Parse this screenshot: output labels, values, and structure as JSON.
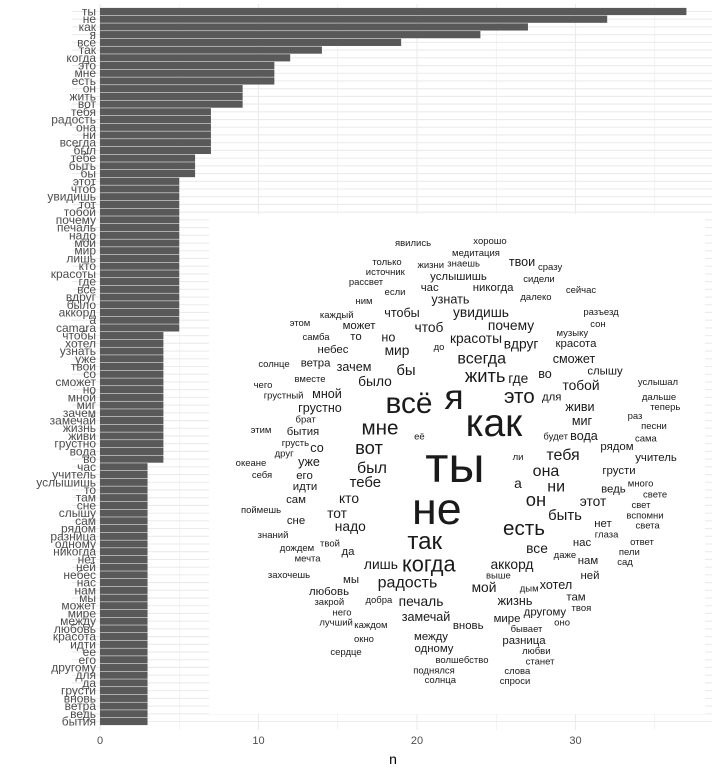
{
  "chart_data": {
    "type": "bar",
    "orientation": "horizontal",
    "categories": [
      "ты",
      "не",
      "как",
      "я",
      "всё",
      "так",
      "когда",
      "это",
      "мне",
      "есть",
      "он",
      "жить",
      "вот",
      "тебя",
      "радость",
      "она",
      "ни",
      "всегда",
      "был",
      "тебе",
      "быть",
      "бы",
      "этот",
      "чтоб",
      "увидишь",
      "тот",
      "тобой",
      "почему",
      "печаль",
      "надо",
      "мой",
      "мир",
      "лишь",
      "кто",
      "красоты",
      "где",
      "все",
      "вдруг",
      "было",
      "аккорд",
      "а",
      "camara",
      "чтобы",
      "хотел",
      "узнать",
      "уже",
      "твои",
      "со",
      "сможет",
      "но",
      "мной",
      "миг",
      "зачем",
      "замечай",
      "жизнь",
      "живи",
      "грустно",
      "вода",
      "во",
      "час",
      "учитель",
      "услышишь",
      "то",
      "там",
      "сне",
      "слышу",
      "сам",
      "рядом",
      "разница",
      "одному",
      "никогда",
      "нет",
      "ней",
      "небес",
      "нас",
      "нам",
      "мы",
      "может",
      "мире",
      "между",
      "любовь",
      "красота",
      "идти",
      "ее",
      "его",
      "другому",
      "для",
      "да",
      "грусти",
      "вновь",
      "ветра",
      "ведь",
      "бытия"
    ],
    "values": [
      37,
      32,
      27,
      24,
      19,
      14,
      12,
      11,
      11,
      11,
      9,
      9,
      9,
      7,
      7,
      7,
      7,
      7,
      7,
      6,
      6,
      6,
      5,
      5,
      5,
      5,
      5,
      5,
      5,
      5,
      5,
      5,
      5,
      5,
      5,
      5,
      5,
      5,
      5,
      5,
      5,
      5,
      4,
      4,
      4,
      4,
      4,
      4,
      4,
      4,
      4,
      4,
      4,
      4,
      4,
      4,
      4,
      4,
      4,
      3,
      3,
      3,
      3,
      3,
      3,
      3,
      3,
      3,
      3,
      3,
      3,
      3,
      3,
      3,
      3,
      3,
      3,
      3,
      3,
      3,
      3,
      3,
      3,
      3,
      3,
      3,
      3,
      3,
      3,
      3,
      3,
      3,
      3
    ],
    "xlabel": "n",
    "ylabel": "",
    "xlim": [
      0,
      37
    ],
    "xticks": [
      "0",
      "10",
      "20",
      "30"
    ],
    "grid": true,
    "bar_color": "#595959",
    "word_cloud": {
      "color": "#1a1a1a",
      "words": [
        {
          "text": "ты",
          "n": 37
        },
        {
          "text": "не",
          "n": 32
        },
        {
          "text": "как",
          "n": 27
        },
        {
          "text": "я",
          "n": 24
        },
        {
          "text": "всё",
          "n": 19
        },
        {
          "text": "так",
          "n": 14
        },
        {
          "text": "когда",
          "n": 12
        },
        {
          "text": "это",
          "n": 11
        },
        {
          "text": "мне",
          "n": 11
        },
        {
          "text": "есть",
          "n": 11
        },
        {
          "text": "он",
          "n": 9
        },
        {
          "text": "жить",
          "n": 9
        },
        {
          "text": "вот",
          "n": 9
        },
        {
          "text": "тебя",
          "n": 7
        },
        {
          "text": "радость",
          "n": 7
        },
        {
          "text": "она",
          "n": 7
        },
        {
          "text": "ни",
          "n": 7
        },
        {
          "text": "всегда",
          "n": 7
        },
        {
          "text": "был",
          "n": 7
        },
        {
          "text": "тебе",
          "n": 6
        },
        {
          "text": "быть",
          "n": 6
        },
        {
          "text": "бы",
          "n": 6
        },
        {
          "text": "этот",
          "n": 5
        },
        {
          "text": "чтоб",
          "n": 5
        },
        {
          "text": "увидишь",
          "n": 5
        },
        {
          "text": "тот",
          "n": 5
        },
        {
          "text": "тобой",
          "n": 5
        },
        {
          "text": "почему",
          "n": 5
        },
        {
          "text": "печаль",
          "n": 5
        },
        {
          "text": "надо",
          "n": 5
        },
        {
          "text": "мой",
          "n": 5
        },
        {
          "text": "мир",
          "n": 5
        },
        {
          "text": "лишь",
          "n": 5
        },
        {
          "text": "кто",
          "n": 5
        },
        {
          "text": "красоты",
          "n": 5
        },
        {
          "text": "где",
          "n": 5
        },
        {
          "text": "все",
          "n": 5
        },
        {
          "text": "вдруг",
          "n": 5
        },
        {
          "text": "было",
          "n": 5
        },
        {
          "text": "аккорд",
          "n": 5
        },
        {
          "text": "а",
          "n": 5
        },
        {
          "text": "чтобы",
          "n": 4
        },
        {
          "text": "хотел",
          "n": 4
        },
        {
          "text": "узнать",
          "n": 4
        },
        {
          "text": "уже",
          "n": 4
        },
        {
          "text": "твои",
          "n": 4
        },
        {
          "text": "со",
          "n": 4
        },
        {
          "text": "сможет",
          "n": 4
        },
        {
          "text": "но",
          "n": 4
        },
        {
          "text": "мной",
          "n": 4
        },
        {
          "text": "миг",
          "n": 4
        },
        {
          "text": "зачем",
          "n": 4
        },
        {
          "text": "замечай",
          "n": 4
        },
        {
          "text": "жизнь",
          "n": 4
        },
        {
          "text": "живи",
          "n": 4
        },
        {
          "text": "грустно",
          "n": 4
        },
        {
          "text": "вода",
          "n": 4
        },
        {
          "text": "во",
          "n": 4
        },
        {
          "text": "час",
          "n": 3
        },
        {
          "text": "учитель",
          "n": 3
        },
        {
          "text": "услышишь",
          "n": 3
        },
        {
          "text": "то",
          "n": 3
        },
        {
          "text": "там",
          "n": 3
        },
        {
          "text": "сне",
          "n": 3
        },
        {
          "text": "слышу",
          "n": 3
        },
        {
          "text": "сам",
          "n": 3
        },
        {
          "text": "рядом",
          "n": 3
        },
        {
          "text": "разница",
          "n": 3
        },
        {
          "text": "одному",
          "n": 3
        },
        {
          "text": "никогда",
          "n": 3
        },
        {
          "text": "нет",
          "n": 3
        },
        {
          "text": "ней",
          "n": 3
        },
        {
          "text": "небес",
          "n": 3
        },
        {
          "text": "нас",
          "n": 3
        },
        {
          "text": "нам",
          "n": 3
        },
        {
          "text": "мы",
          "n": 3
        },
        {
          "text": "может",
          "n": 3
        },
        {
          "text": "мире",
          "n": 3
        },
        {
          "text": "между",
          "n": 3
        },
        {
          "text": "любовь",
          "n": 3
        },
        {
          "text": "красота",
          "n": 3
        },
        {
          "text": "идти",
          "n": 3
        },
        {
          "text": "его",
          "n": 3
        },
        {
          "text": "другому",
          "n": 3
        },
        {
          "text": "для",
          "n": 3
        },
        {
          "text": "да",
          "n": 3
        },
        {
          "text": "грусти",
          "n": 3
        },
        {
          "text": "вновь",
          "n": 3
        },
        {
          "text": "ветра",
          "n": 3
        },
        {
          "text": "ведь",
          "n": 3
        },
        {
          "text": "бытия",
          "n": 3
        },
        {
          "text": "явились"
        },
        {
          "text": "хорошо"
        },
        {
          "text": "медитация"
        },
        {
          "text": "только"
        },
        {
          "text": "знаешь"
        },
        {
          "text": "источник"
        },
        {
          "text": "жизни"
        },
        {
          "text": "сразу"
        },
        {
          "text": "сидели"
        },
        {
          "text": "рассвет"
        },
        {
          "text": "если"
        },
        {
          "text": "далеко"
        },
        {
          "text": "сейчас"
        },
        {
          "text": "ним"
        },
        {
          "text": "разъезд"
        },
        {
          "text": "каждый"
        },
        {
          "text": "этом"
        },
        {
          "text": "сон"
        },
        {
          "text": "музыку"
        },
        {
          "text": "самба"
        },
        {
          "text": "до"
        },
        {
          "text": "солнце"
        },
        {
          "text": "вместе"
        },
        {
          "text": "услышал"
        },
        {
          "text": "чего"
        },
        {
          "text": "дальше"
        },
        {
          "text": "грустный"
        },
        {
          "text": "теперь"
        },
        {
          "text": "брат"
        },
        {
          "text": "раз"
        },
        {
          "text": "этим"
        },
        {
          "text": "грусть"
        },
        {
          "text": "будет"
        },
        {
          "text": "песни"
        },
        {
          "text": "её"
        },
        {
          "text": "друг"
        },
        {
          "text": "сама"
        },
        {
          "text": "ли"
        },
        {
          "text": "океане"
        },
        {
          "text": "себя"
        },
        {
          "text": "много"
        },
        {
          "text": "свете"
        },
        {
          "text": "свет"
        },
        {
          "text": "поймешь"
        },
        {
          "text": "вспомни"
        },
        {
          "text": "света"
        },
        {
          "text": "знаний"
        },
        {
          "text": "глаза"
        },
        {
          "text": "дождем"
        },
        {
          "text": "ответ"
        },
        {
          "text": "даже"
        },
        {
          "text": "пели"
        },
        {
          "text": "мечта"
        },
        {
          "text": "сад"
        },
        {
          "text": "выше"
        },
        {
          "text": "захочешь"
        },
        {
          "text": "добра"
        },
        {
          "text": "дым"
        },
        {
          "text": "закрой"
        },
        {
          "text": "твоя"
        },
        {
          "text": "него"
        },
        {
          "text": "лучший"
        },
        {
          "text": "оно"
        },
        {
          "text": "каждом"
        },
        {
          "text": "бывает"
        },
        {
          "text": "окно"
        },
        {
          "text": "любви"
        },
        {
          "text": "сердце"
        },
        {
          "text": "волшебство"
        },
        {
          "text": "станет"
        },
        {
          "text": "поднялся"
        },
        {
          "text": "слова"
        },
        {
          "text": "солнца"
        },
        {
          "text": "спроси"
        },
        {
          "text": "твой"
        }
      ]
    }
  }
}
